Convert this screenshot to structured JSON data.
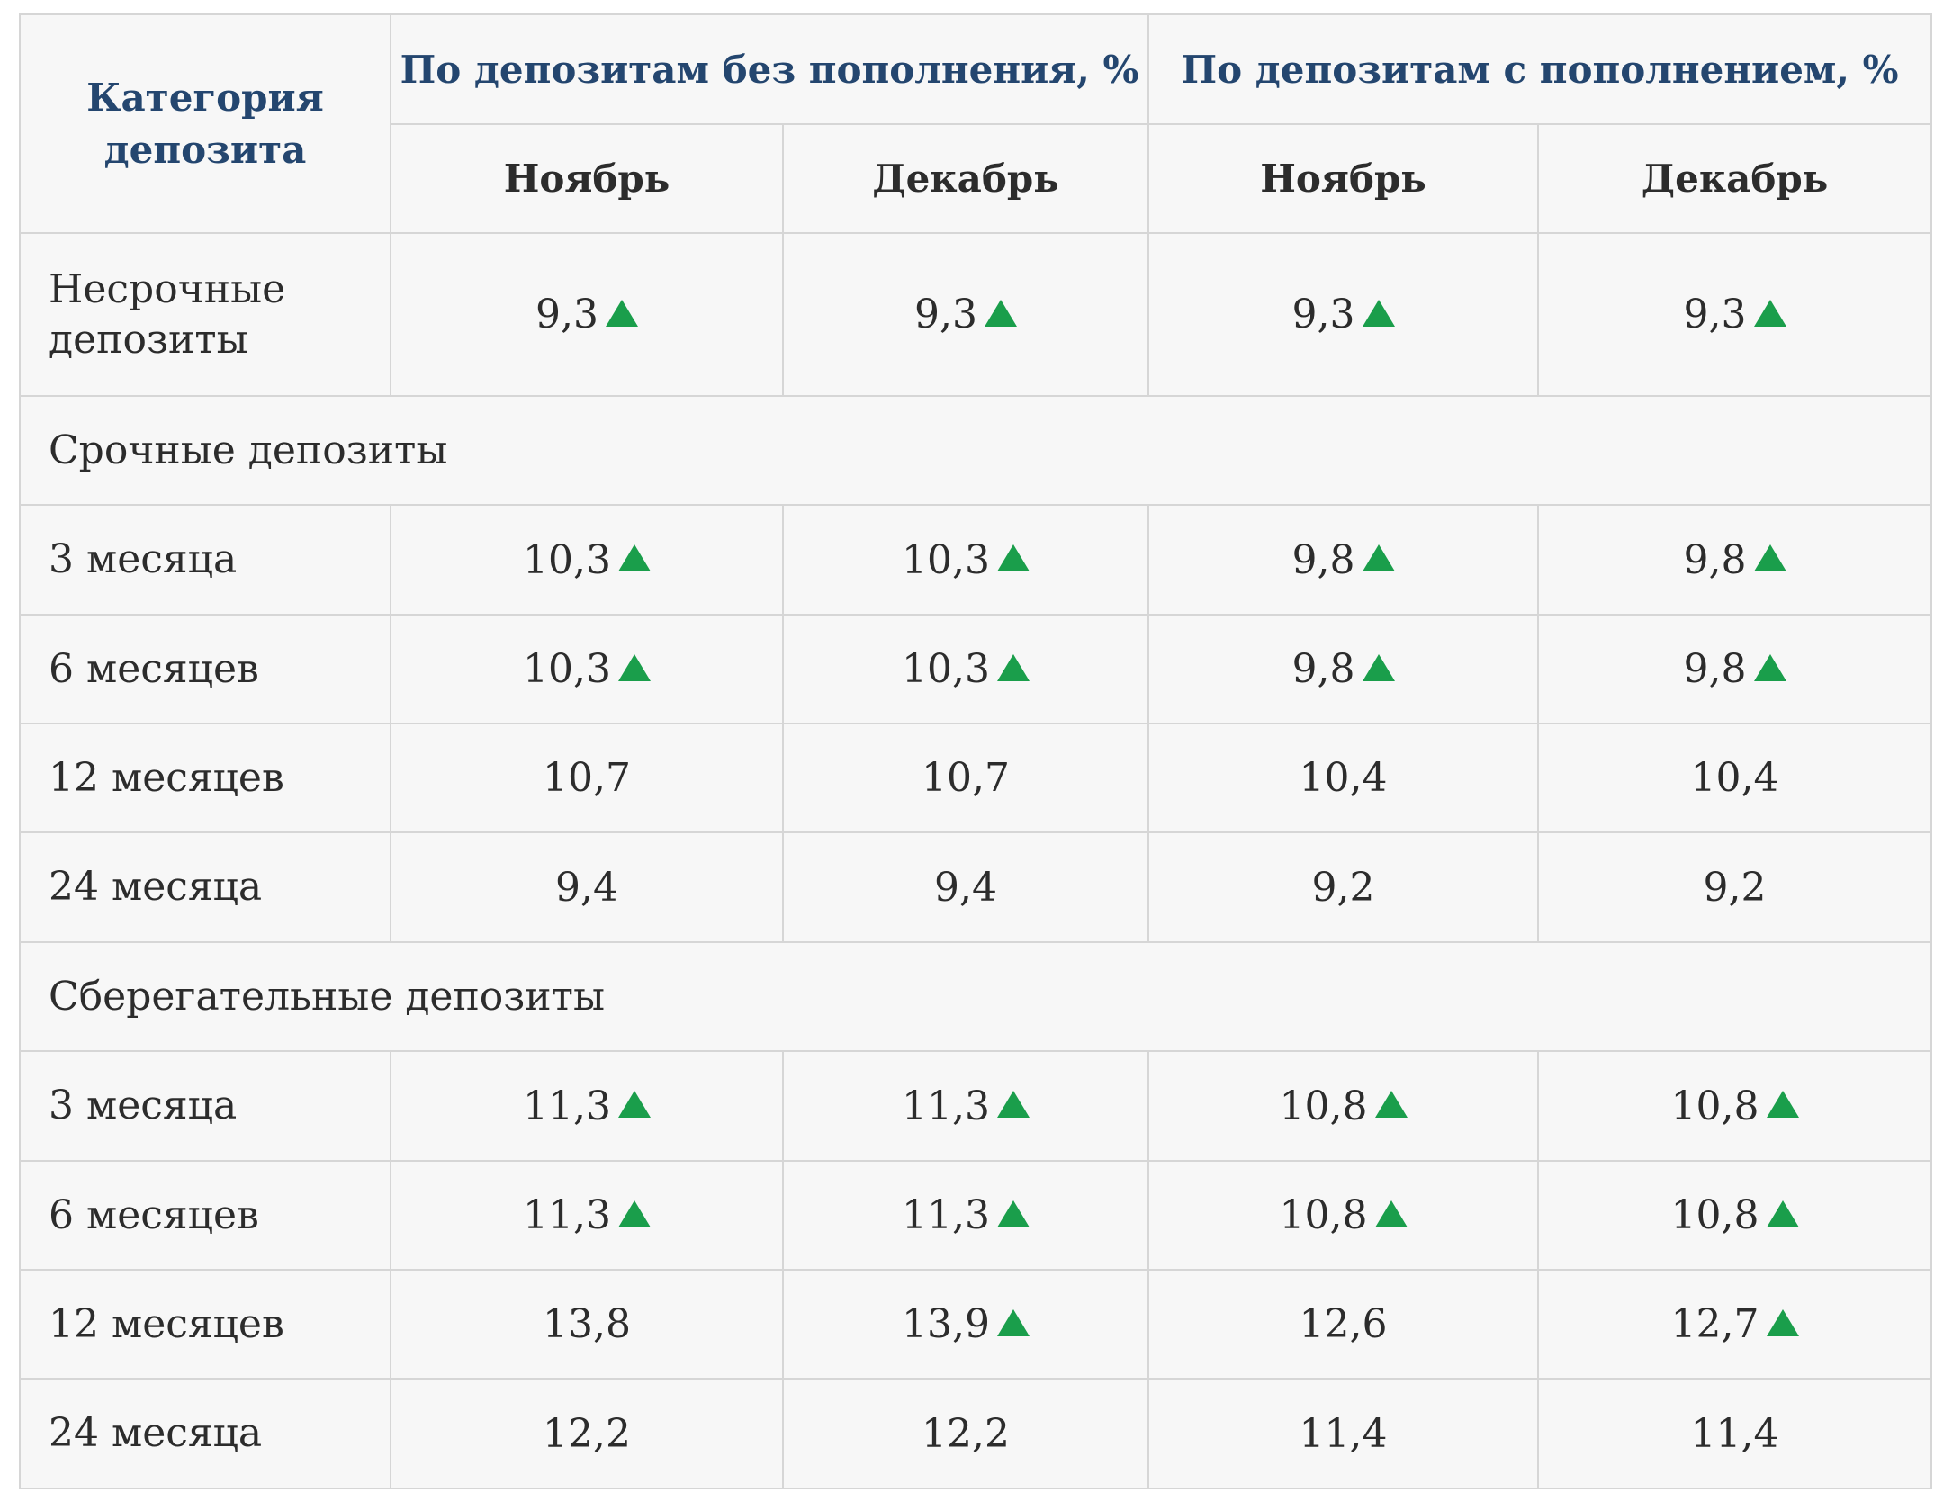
{
  "header": {
    "category": "Категория депозита",
    "group_no_topup": "По депозитам без пополнения, %",
    "group_topup": "По депозитам с пополнением, %",
    "months": [
      "Ноябрь",
      "Декабрь",
      "Ноябрь",
      "Декабрь"
    ]
  },
  "rows": {
    "demand": {
      "label": "Несрочные депозиты",
      "cells": [
        {
          "value": "9,3",
          "up": true
        },
        {
          "value": "9,3",
          "up": true
        },
        {
          "value": "9,3",
          "up": true
        },
        {
          "value": "9,3",
          "up": true
        }
      ]
    },
    "term_section": "Срочные депозиты",
    "term": [
      {
        "label": "3 месяца",
        "cells": [
          {
            "value": "10,3",
            "up": true
          },
          {
            "value": "10,3",
            "up": true
          },
          {
            "value": "9,8",
            "up": true
          },
          {
            "value": "9,8",
            "up": true
          }
        ]
      },
      {
        "label": "6 месяцев",
        "cells": [
          {
            "value": "10,3",
            "up": true
          },
          {
            "value": "10,3",
            "up": true
          },
          {
            "value": "9,8",
            "up": true
          },
          {
            "value": "9,8",
            "up": true
          }
        ]
      },
      {
        "label": "12 месяцев",
        "cells": [
          {
            "value": "10,7",
            "up": false
          },
          {
            "value": "10,7",
            "up": false
          },
          {
            "value": "10,4",
            "up": false
          },
          {
            "value": "10,4",
            "up": false
          }
        ]
      },
      {
        "label": "24 месяца",
        "cells": [
          {
            "value": "9,4",
            "up": false
          },
          {
            "value": "9,4",
            "up": false
          },
          {
            "value": "9,2",
            "up": false
          },
          {
            "value": "9,2",
            "up": false
          }
        ]
      }
    ],
    "savings_section": "Сберегательные депозиты",
    "savings": [
      {
        "label": "3 месяца",
        "cells": [
          {
            "value": "11,3",
            "up": true
          },
          {
            "value": "11,3",
            "up": true
          },
          {
            "value": "10,8",
            "up": true
          },
          {
            "value": "10,8",
            "up": true
          }
        ]
      },
      {
        "label": "6 месяцев",
        "cells": [
          {
            "value": "11,3",
            "up": true
          },
          {
            "value": "11,3",
            "up": true
          },
          {
            "value": "10,8",
            "up": true
          },
          {
            "value": "10,8",
            "up": true
          }
        ]
      },
      {
        "label": "12 месяцев",
        "cells": [
          {
            "value": "13,8",
            "up": false
          },
          {
            "value": "13,9",
            "up": true
          },
          {
            "value": "12,6",
            "up": false
          },
          {
            "value": "12,7",
            "up": true
          }
        ]
      },
      {
        "label": "24 месяца",
        "cells": [
          {
            "value": "12,2",
            "up": false
          },
          {
            "value": "12,2",
            "up": false
          },
          {
            "value": "11,4",
            "up": false
          },
          {
            "value": "11,4",
            "up": false
          }
        ]
      }
    ]
  },
  "colors": {
    "header_text": "#24466f",
    "up_arrow": "#1a9e4b",
    "border": "#d6d6d6",
    "background": "#f7f7f7"
  }
}
